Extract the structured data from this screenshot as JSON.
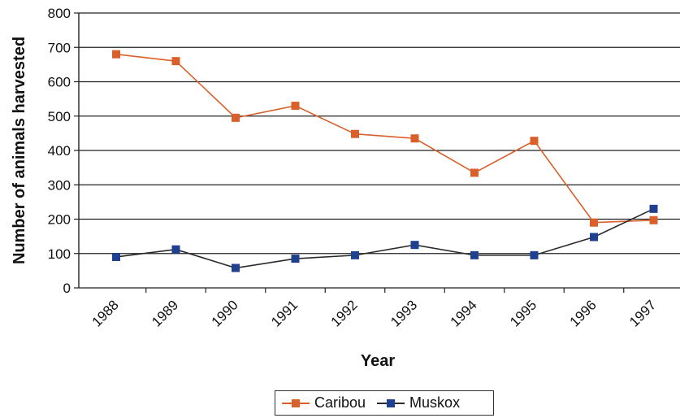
{
  "chart_data": {
    "type": "line",
    "categories": [
      "1988",
      "1989",
      "1990",
      "1991",
      "1992",
      "1993",
      "1994",
      "1995",
      "1996",
      "1997"
    ],
    "series": [
      {
        "name": "Caribou",
        "color": "#d9602b",
        "values": [
          680,
          660,
          495,
          530,
          448,
          435,
          335,
          428,
          190,
          197
        ]
      },
      {
        "name": "Muskox",
        "color": "#1f3f8f",
        "values": [
          90,
          112,
          58,
          85,
          95,
          125,
          95,
          95,
          148,
          230
        ]
      }
    ],
    "xlabel": "Year",
    "ylabel": "Number of animals harvested",
    "ylim": [
      0,
      800
    ],
    "yticks": [
      0,
      100,
      200,
      300,
      400,
      500,
      600,
      700,
      800
    ],
    "grid": true,
    "legend_position": "bottom"
  }
}
